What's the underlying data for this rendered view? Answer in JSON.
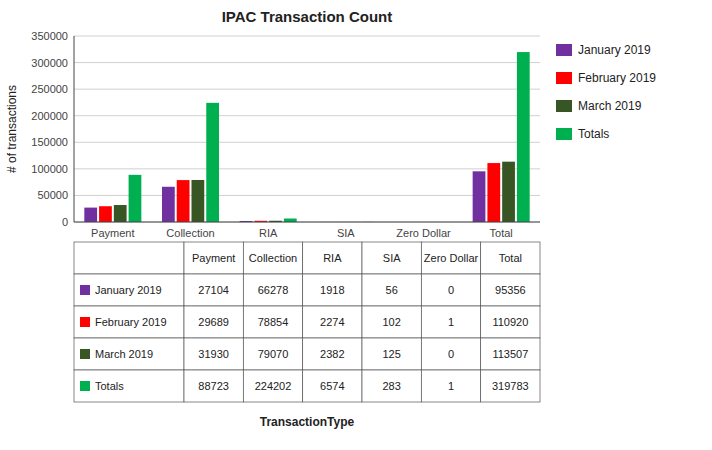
{
  "chart_data": {
    "type": "bar",
    "title": "IPAC Transaction  Count",
    "categories": [
      "Payment",
      "Collection",
      "RIA",
      "SIA",
      "Zero Dollar",
      "Total"
    ],
    "series": [
      {
        "name": "January 2019",
        "color": "#7030A0",
        "values": [
          27104,
          66278,
          1918,
          56,
          0,
          95356
        ]
      },
      {
        "name": "February 2019",
        "color": "#FF0000",
        "values": [
          29689,
          78854,
          2274,
          102,
          1,
          110920
        ]
      },
      {
        "name": "March 2019",
        "color": "#375623",
        "values": [
          31930,
          79070,
          2382,
          125,
          0,
          113507
        ]
      },
      {
        "name": "Totals",
        "color": "#00B050",
        "values": [
          88723,
          224202,
          6574,
          283,
          1,
          319783
        ]
      }
    ],
    "ylabel": "# of transactions",
    "xlabel": "TransactionType",
    "ylim": [
      0,
      350000
    ],
    "yticks": [
      0,
      50000,
      100000,
      150000,
      200000,
      250000,
      300000,
      350000
    ],
    "grid": true,
    "legend": "right"
  }
}
